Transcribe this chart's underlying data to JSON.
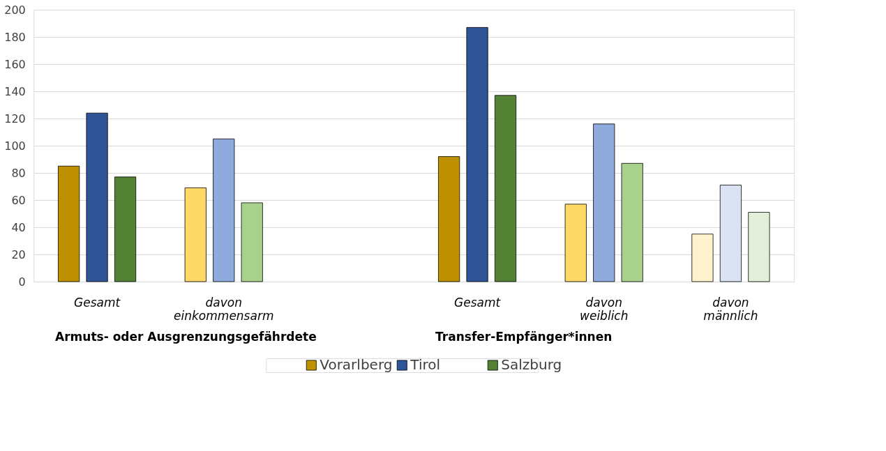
{
  "chart_data": {
    "type": "bar",
    "categories": [
      "Gesamt",
      "davon\neinkommensarm",
      null,
      "Gesamt",
      "davon\nweiblich",
      "davon\nmännlich"
    ],
    "series": [
      {
        "name": "Vorarlberg",
        "color": "#bf9000",
        "colors": [
          "#bf9000",
          "#ffd966",
          null,
          "#bf9000",
          "#ffd966",
          "#fff2cc"
        ],
        "values": [
          85,
          69,
          null,
          92,
          57,
          35
        ]
      },
      {
        "name": "Tirol",
        "color": "#2f5597",
        "colors": [
          "#2f5597",
          "#8faadc",
          null,
          "#2f5597",
          "#8faadc",
          "#dae3f3"
        ],
        "values": [
          124,
          105,
          null,
          187,
          116,
          71
        ]
      },
      {
        "name": "Salzburg",
        "color": "#548235",
        "colors": [
          "#548235",
          "#a9d18e",
          null,
          "#548235",
          "#a9d18e",
          "#e2f0d9"
        ],
        "values": [
          77,
          58,
          null,
          137,
          87,
          51
        ]
      }
    ],
    "annotations": [
      "Armuts- oder Ausgrenzungsgefährdete",
      "Transfer-Empfänger*innen"
    ],
    "ylim": [
      0,
      200
    ],
    "yticks": [
      0,
      20,
      40,
      60,
      80,
      100,
      120,
      140,
      160,
      180,
      200
    ],
    "grid": "y",
    "legend": "bottom"
  }
}
